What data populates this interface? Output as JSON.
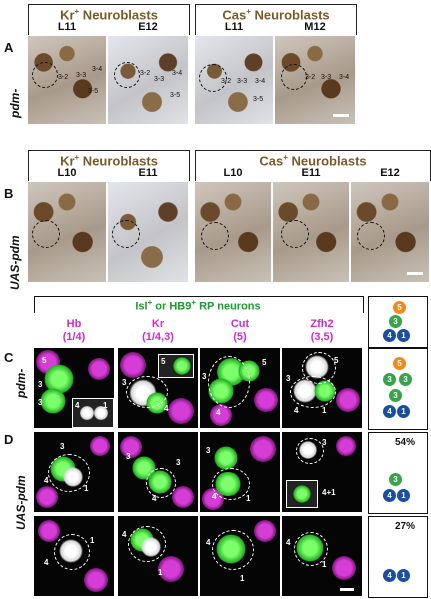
{
  "panel_A": {
    "letter": "A",
    "side_label": "pdm-",
    "groups": [
      {
        "title_main": "Kr",
        "title_sup": "+",
        "title_rest": " Neuroblasts",
        "cols": [
          "L11",
          "E12"
        ]
      },
      {
        "title_main": "Cas",
        "title_sup": "+",
        "title_rest": " Neuroblasts",
        "cols": [
          "L11",
          "M12"
        ]
      }
    ],
    "cell_labels": [
      "3-2",
      "3-3",
      "3-4",
      "3-5",
      "3-2",
      "3-3",
      "3-4",
      "3-5",
      "3-2",
      "3-3",
      "3-4",
      "3-5",
      "3-2",
      "3-3",
      "3-4"
    ]
  },
  "panel_B": {
    "letter": "B",
    "side_label": "UAS-pdm",
    "groups": [
      {
        "title_main": "Kr",
        "title_sup": "+",
        "title_rest": " Neuroblasts",
        "cols": [
          "L10",
          "E11"
        ]
      },
      {
        "title_main": "Cas",
        "title_sup": "+",
        "title_rest": " Neuroblasts",
        "cols": [
          "L10",
          "E11",
          "E12"
        ]
      }
    ]
  },
  "panel_CD": {
    "header_main": "Isl",
    "header_sup": "+",
    "header_mid": " or HB9",
    "header_sup2": "+",
    "header_rest": " RP neurons",
    "columns": [
      {
        "name": "Hb",
        "sub": "(1/4)"
      },
      {
        "name": "Kr",
        "sub": "(1/4,3)"
      },
      {
        "name": "Cut",
        "sub": "(5)"
      },
      {
        "name": "Zfh2",
        "sub": "(3,5)"
      }
    ],
    "letter_C": "C",
    "letter_D": "D",
    "side_label_C": "pdm-",
    "side_label_D": "UAS-pdm",
    "annotation": "4+1",
    "pct_1": "54%",
    "pct_2": "27%",
    "numbers": [
      "1",
      "3",
      "4",
      "5"
    ]
  }
}
